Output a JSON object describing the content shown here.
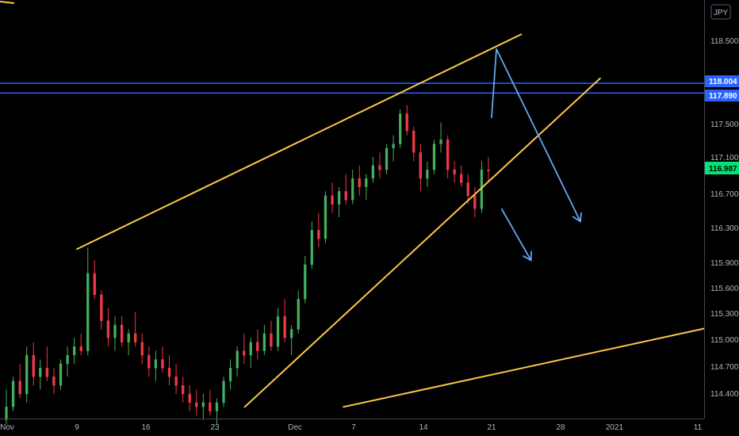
{
  "chart_data": {
    "type": "candlestick",
    "symbol_currency": "JPY",
    "x_ticks": [
      "Nov",
      "9",
      "16",
      "23",
      "Dec",
      "7",
      "14",
      "21",
      "28",
      "2021",
      "11"
    ],
    "y_ticks": [
      "118.500",
      "117.500",
      "117.100",
      "116.700",
      "116.300",
      "115.900",
      "115.600",
      "115.300",
      "115.000",
      "114.700",
      "114.400"
    ],
    "price_tags": [
      {
        "label": "118.004",
        "value": 118.004,
        "color": "#2962ff"
      },
      {
        "label": "117.890",
        "value": 117.89,
        "color": "#2962ff"
      },
      {
        "label": "116.987",
        "value": 116.987,
        "color": "#00e676"
      }
    ],
    "horizontal_lines": [
      {
        "value": 118.004,
        "color": "#2962ff"
      },
      {
        "value": 117.89,
        "color": "#2962ff"
      }
    ],
    "trend_lines": [
      {
        "name": "upper-channel",
        "from": {
          "date": "Nov 9",
          "price": 116.08
        },
        "to": {
          "date": "Dec 24",
          "price": 118.57
        },
        "color": "#f9c846"
      },
      {
        "name": "lower-channel",
        "from": {
          "date": "Nov 26",
          "price": 114.25
        },
        "to": {
          "date": "Jan 1",
          "price": 118.06
        },
        "color": "#f9c846"
      },
      {
        "name": "long-term-support",
        "from": {
          "date": "Dec 6",
          "price": 114.25
        },
        "to": {
          "date": "Jan 12",
          "price": 115.17
        },
        "color": "#f9c846"
      }
    ],
    "arrows": [
      {
        "name": "projection-arrow-large",
        "points": [
          {
            "date": "Dec 21",
            "price": 117.6
          },
          {
            "date": "Dec 21.5",
            "price": 118.4
          },
          {
            "date": "Dec 30",
            "price": 116.4
          }
        ],
        "color": "#64a8f0"
      },
      {
        "name": "projection-arrow-small",
        "points": [
          {
            "date": "Dec 22",
            "price": 116.55
          },
          {
            "date": "Dec 25",
            "price": 115.95
          }
        ],
        "color": "#64a8f0"
      }
    ],
    "candles": [
      [
        114.1,
        114.45,
        114.05,
        114.25
      ],
      [
        114.25,
        114.6,
        114.2,
        114.55
      ],
      [
        114.55,
        114.75,
        114.35,
        114.4
      ],
      [
        114.4,
        114.95,
        114.3,
        114.85
      ],
      [
        114.85,
        115.0,
        114.5,
        114.6
      ],
      [
        114.6,
        114.8,
        114.45,
        114.7
      ],
      [
        114.7,
        114.95,
        114.55,
        114.6
      ],
      [
        114.6,
        114.7,
        114.4,
        114.5
      ],
      [
        114.5,
        114.8,
        114.45,
        114.75
      ],
      [
        114.75,
        114.95,
        114.6,
        114.85
      ],
      [
        114.85,
        115.05,
        114.75,
        114.95
      ],
      [
        114.95,
        115.1,
        114.85,
        114.9
      ],
      [
        114.9,
        116.1,
        114.85,
        115.8
      ],
      [
        115.8,
        115.95,
        115.5,
        115.55
      ],
      [
        115.55,
        115.6,
        115.15,
        115.25
      ],
      [
        115.25,
        115.4,
        114.95,
        115.05
      ],
      [
        115.05,
        115.3,
        114.9,
        115.2
      ],
      [
        115.2,
        115.3,
        114.95,
        115.0
      ],
      [
        115.0,
        115.15,
        114.85,
        115.1
      ],
      [
        115.1,
        115.35,
        114.95,
        115.0
      ],
      [
        115.0,
        115.1,
        114.75,
        114.85
      ],
      [
        114.85,
        114.95,
        114.6,
        114.7
      ],
      [
        114.7,
        114.9,
        114.55,
        114.8
      ],
      [
        114.8,
        114.95,
        114.65,
        114.7
      ],
      [
        114.7,
        114.85,
        114.5,
        114.6
      ],
      [
        114.6,
        114.75,
        114.4,
        114.5
      ],
      [
        114.5,
        114.6,
        114.3,
        114.4
      ],
      [
        114.4,
        114.5,
        114.2,
        114.3
      ],
      [
        114.3,
        114.45,
        114.15,
        114.25
      ],
      [
        114.25,
        114.4,
        114.1,
        114.3
      ],
      [
        114.3,
        114.45,
        114.15,
        114.2
      ],
      [
        114.2,
        114.35,
        114.05,
        114.3
      ],
      [
        114.3,
        114.6,
        114.25,
        114.55
      ],
      [
        114.55,
        114.8,
        114.45,
        114.7
      ],
      [
        114.7,
        114.95,
        114.6,
        114.9
      ],
      [
        114.9,
        115.1,
        114.75,
        114.85
      ],
      [
        114.85,
        115.05,
        114.7,
        115.0
      ],
      [
        115.0,
        115.15,
        114.8,
        114.9
      ],
      [
        114.9,
        115.2,
        114.85,
        115.1
      ],
      [
        115.1,
        115.25,
        114.9,
        114.95
      ],
      [
        114.95,
        115.4,
        114.9,
        115.3
      ],
      [
        115.3,
        115.5,
        115.0,
        115.05
      ],
      [
        115.05,
        115.2,
        114.85,
        115.15
      ],
      [
        115.15,
        115.6,
        115.1,
        115.5
      ],
      [
        115.5,
        116.0,
        115.45,
        115.9
      ],
      [
        115.9,
        116.4,
        115.85,
        116.3
      ],
      [
        116.3,
        116.5,
        116.1,
        116.2
      ],
      [
        116.2,
        116.75,
        116.15,
        116.7
      ],
      [
        116.7,
        116.85,
        116.5,
        116.6
      ],
      [
        116.6,
        116.8,
        116.45,
        116.75
      ],
      [
        116.75,
        116.95,
        116.6,
        116.65
      ],
      [
        116.65,
        117.0,
        116.6,
        116.9
      ],
      [
        116.9,
        117.05,
        116.7,
        116.8
      ],
      [
        116.8,
        116.95,
        116.65,
        116.9
      ],
      [
        116.9,
        117.15,
        116.85,
        117.05
      ],
      [
        117.05,
        117.2,
        116.9,
        117.0
      ],
      [
        117.0,
        117.3,
        116.95,
        117.25
      ],
      [
        117.25,
        117.4,
        117.1,
        117.3
      ],
      [
        117.3,
        117.7,
        117.25,
        117.65
      ],
      [
        117.65,
        117.75,
        117.4,
        117.45
      ],
      [
        117.45,
        117.5,
        117.1,
        117.2
      ],
      [
        117.2,
        117.3,
        116.75,
        116.9
      ],
      [
        116.9,
        117.1,
        116.8,
        117.0
      ],
      [
        117.0,
        117.35,
        116.95,
        117.3
      ],
      [
        117.3,
        117.55,
        117.2,
        117.35
      ],
      [
        117.35,
        117.4,
        116.9,
        117.0
      ],
      [
        117.0,
        117.1,
        116.85,
        116.95
      ],
      [
        116.95,
        117.05,
        116.8,
        116.85
      ],
      [
        116.85,
        116.95,
        116.6,
        116.7
      ],
      [
        116.7,
        116.8,
        116.45,
        116.55
      ],
      [
        116.55,
        117.1,
        116.5,
        117.0
      ],
      [
        117.0,
        117.15,
        116.85,
        116.987
      ]
    ]
  }
}
